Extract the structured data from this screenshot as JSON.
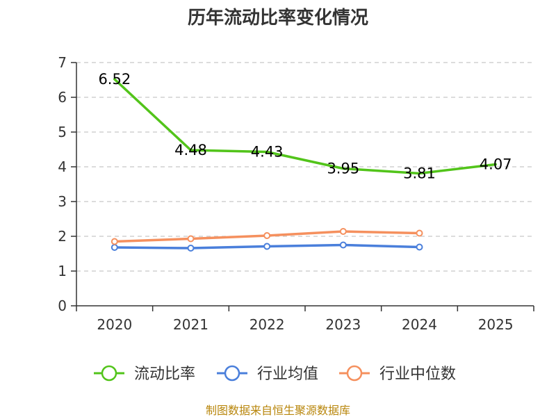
{
  "chart_data": {
    "type": "line",
    "title": "历年流动比率变化情况",
    "categories": [
      "2020",
      "2021",
      "2022",
      "2023",
      "2024",
      "2025"
    ],
    "ylim": [
      0,
      7
    ],
    "yticks": [
      "0",
      "1",
      "2",
      "3",
      "4",
      "5",
      "6",
      "7"
    ],
    "grid": true,
    "legend_position": "bottom",
    "series": [
      {
        "name": "流动比率",
        "color": "#52c41a",
        "values": [
          6.52,
          4.48,
          4.43,
          3.95,
          3.81,
          4.07
        ],
        "labels": [
          "6.52",
          "4.48",
          "4.43",
          "3.95",
          "3.81",
          "4.07"
        ],
        "markers": false
      },
      {
        "name": "行业均值",
        "color": "#4a7fdb",
        "values": [
          1.68,
          1.66,
          1.71,
          1.75,
          1.69,
          null
        ],
        "markers": true
      },
      {
        "name": "行业中位数",
        "color": "#f5905e",
        "values": [
          1.85,
          1.93,
          2.02,
          2.14,
          2.09,
          null
        ],
        "markers": true
      }
    ],
    "source": "制图数据来自恒生聚源数据库"
  }
}
